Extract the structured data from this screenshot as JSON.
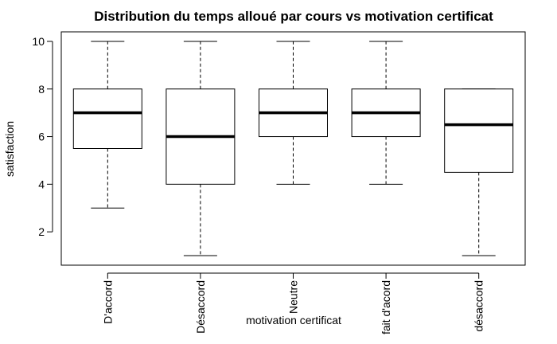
{
  "chart_data": {
    "type": "box",
    "title": "Distribution du temps alloué par cours vs motivation certificat",
    "xlabel": "motivation certificat",
    "ylabel": "satisfaction",
    "ylim": [
      0.6,
      10.4
    ],
    "yticks": [
      2,
      4,
      6,
      8,
      10
    ],
    "grid": false,
    "boxes": [
      {
        "category": "D'accord",
        "min": 3,
        "q1": 5.5,
        "median": 7,
        "q3": 8,
        "max": 10
      },
      {
        "category": "Désaccord",
        "min": 1,
        "q1": 4,
        "median": 6,
        "q3": 8,
        "max": 10
      },
      {
        "category": "Neutre",
        "min": 4,
        "q1": 6,
        "median": 7,
        "q3": 8,
        "max": 10
      },
      {
        "category": "fait d'acord",
        "min": 4,
        "q1": 6,
        "median": 7,
        "q3": 8,
        "max": 10
      },
      {
        "category": "désaccord",
        "min": 1,
        "q1": 4.5,
        "median": 6.5,
        "q3": 8,
        "max": 8
      }
    ]
  }
}
